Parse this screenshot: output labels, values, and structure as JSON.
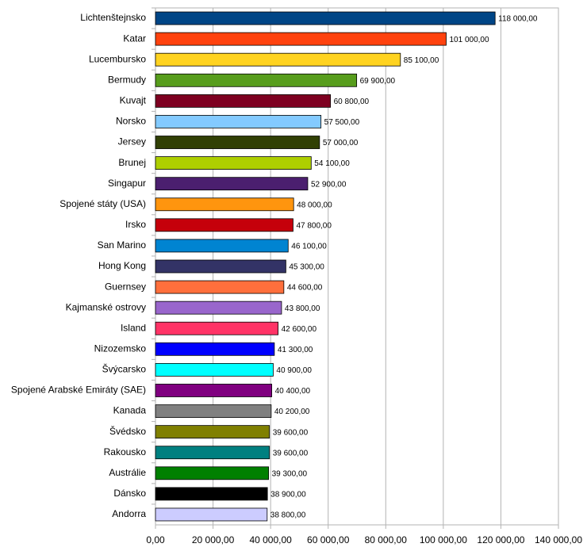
{
  "chart_data": {
    "type": "barh",
    "categories": [
      "Lichtenštejnsko",
      "Katar",
      "Lucembursko",
      "Bermudy",
      "Kuvajt",
      "Norsko",
      "Jersey",
      "Brunej",
      "Singapur",
      "Spojené státy (USA)",
      "Irsko",
      "San Marino",
      "Hong Kong",
      "Guernsey",
      "Kajmanské ostrovy",
      "Island",
      "Nizozemsko",
      "Švýcarsko",
      "Spojené Arabské Emiráty (SAE)",
      "Kanada",
      "Švédsko",
      "Rakousko",
      "Austrálie",
      "Dánsko",
      "Andorra"
    ],
    "values": [
      118000,
      101000,
      85100,
      69900,
      60800,
      57500,
      57000,
      54100,
      52900,
      48000,
      47800,
      46100,
      45300,
      44600,
      43800,
      42600,
      41300,
      40900,
      40400,
      40200,
      39600,
      39600,
      39300,
      38900,
      38800
    ],
    "value_labels": [
      "118 000,00",
      "101 000,00",
      "85 100,00",
      "69 900,00",
      "60 800,00",
      "57 500,00",
      "57 000,00",
      "54 100,00",
      "52 900,00",
      "48 000,00",
      "47 800,00",
      "46 100,00",
      "45 300,00",
      "44 600,00",
      "43 800,00",
      "42 600,00",
      "41 300,00",
      "40 900,00",
      "40 400,00",
      "40 200,00",
      "39 600,00",
      "39 600,00",
      "39 300,00",
      "38 900,00",
      "38 800,00"
    ],
    "colors": [
      "#004586",
      "#ff420e",
      "#ffd320",
      "#579d1c",
      "#7e0021",
      "#83caff",
      "#314004",
      "#aecf00",
      "#4b1f6f",
      "#ff950e",
      "#c5000b",
      "#0084d1",
      "#333366",
      "#ff6f3c",
      "#9966cc",
      "#ff3366",
      "#0000ff",
      "#00ffff",
      "#800080",
      "#808080",
      "#808000",
      "#008080",
      "#008000",
      "#000000",
      "#ccccff"
    ],
    "xlim": [
      0,
      140000
    ],
    "xticks": [
      {
        "value": 0,
        "label": "0,00"
      },
      {
        "value": 20000,
        "label": "20 000,00"
      },
      {
        "value": 40000,
        "label": "40 000,00"
      },
      {
        "value": 60000,
        "label": "60 000,00"
      },
      {
        "value": 80000,
        "label": "80 000,00"
      },
      {
        "value": 100000,
        "label": "100 000,00"
      },
      {
        "value": 120000,
        "label": "120 000,00"
      },
      {
        "value": 140000,
        "label": "140 000,00"
      }
    ],
    "grid": true
  }
}
